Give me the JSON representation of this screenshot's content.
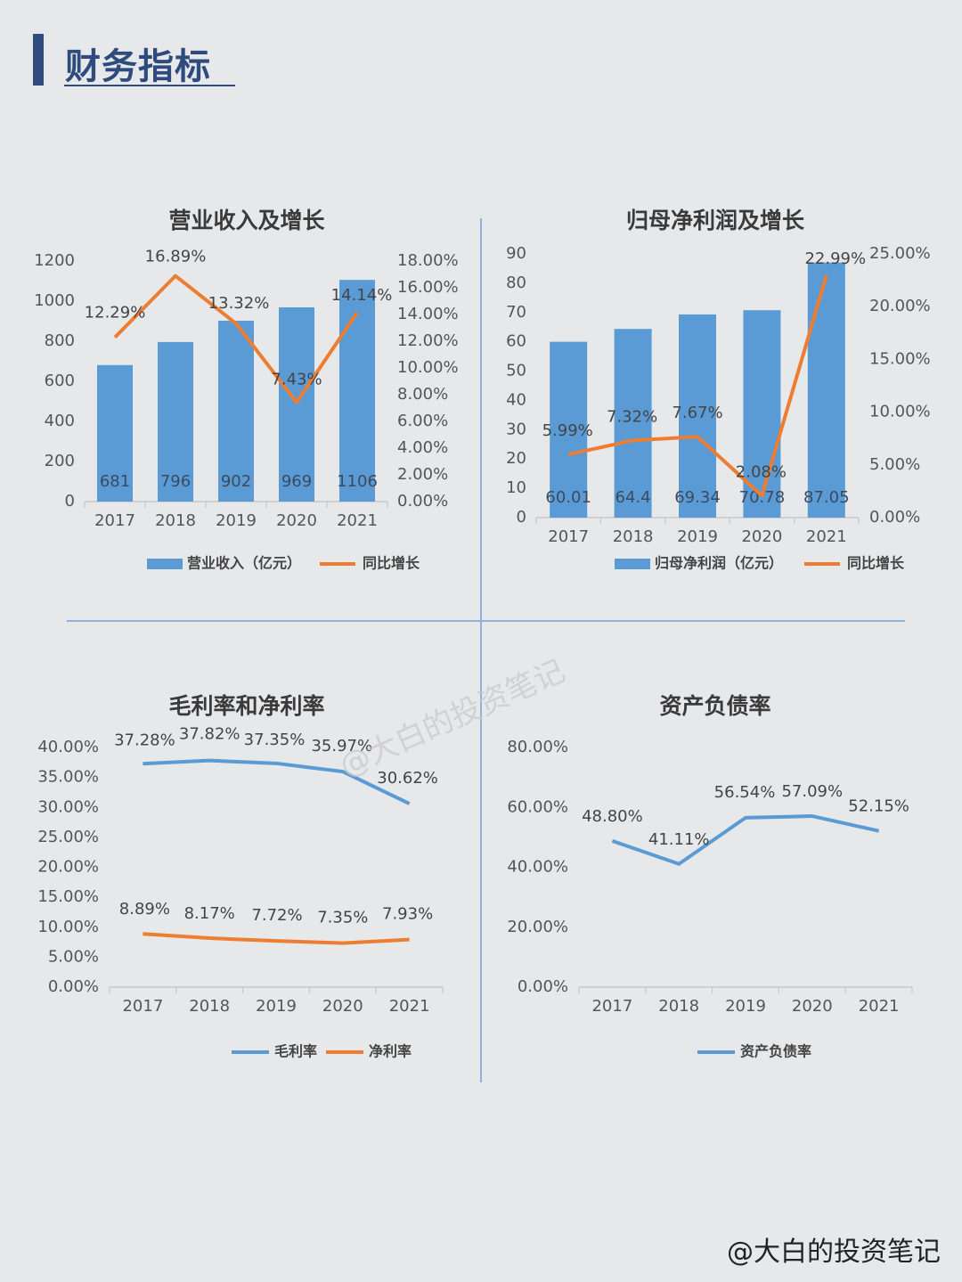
{
  "header": {
    "title": "财务指标"
  },
  "watermark": "@大白的投资笔记",
  "footer": {
    "credit": "@大白的投资笔记"
  },
  "colors": {
    "bar": "#5b9bd5",
    "orange": "#ed7d31",
    "blue_line": "#5b9bd5",
    "header": "#2f4a7c"
  },
  "chart_data": [
    {
      "id": "revenue",
      "type": "bar+line",
      "title": "营业收入及增长",
      "categories": [
        "2017",
        "2018",
        "2019",
        "2020",
        "2021"
      ],
      "bar_series": {
        "name": "营业收入（亿元）",
        "values": [
          681,
          796,
          902,
          969,
          1106
        ],
        "labels": [
          "681",
          "796",
          "902",
          "969",
          "1106"
        ]
      },
      "line_series": {
        "name": "同比增长",
        "values": [
          12.29,
          16.89,
          13.32,
          7.43,
          14.14
        ],
        "labels": [
          "12.29%",
          "16.89%",
          "13.32%",
          "7.43%",
          "14.14%"
        ]
      },
      "left_axis": {
        "ticks": [
          "0",
          "200",
          "400",
          "600",
          "800",
          "1000",
          "1200"
        ],
        "min": 0,
        "max": 1200
      },
      "right_axis": {
        "ticks": [
          "0.00%",
          "2.00%",
          "4.00%",
          "6.00%",
          "8.00%",
          "10.00%",
          "12.00%",
          "14.00%",
          "16.00%",
          "18.00%"
        ],
        "min": 0,
        "max": 18
      },
      "legend": "bottom"
    },
    {
      "id": "profit",
      "type": "bar+line",
      "title": "归母净利润及增长",
      "categories": [
        "2017",
        "2018",
        "2019",
        "2020",
        "2021"
      ],
      "bar_series": {
        "name": "归母净利润（亿元）",
        "values": [
          60.01,
          64.4,
          69.34,
          70.78,
          87.05
        ],
        "labels": [
          "60.01",
          "64.4",
          "69.34",
          "70.78",
          "87.05"
        ]
      },
      "line_series": {
        "name": "同比增长",
        "values": [
          5.99,
          7.32,
          7.67,
          2.08,
          22.99
        ],
        "labels": [
          "5.99%",
          "7.32%",
          "7.67%",
          "2.08%",
          "22.99%"
        ]
      },
      "left_axis": {
        "ticks": [
          "0",
          "10",
          "20",
          "30",
          "40",
          "50",
          "60",
          "70",
          "80",
          "90"
        ],
        "min": 0,
        "max": 90
      },
      "right_axis": {
        "ticks": [
          "0.00%",
          "5.00%",
          "10.00%",
          "15.00%",
          "20.00%",
          "25.00%"
        ],
        "min": 0,
        "max": 25
      },
      "legend": "bottom"
    },
    {
      "id": "margins",
      "type": "line",
      "title": "毛利率和净利率",
      "categories": [
        "2017",
        "2018",
        "2019",
        "2020",
        "2021"
      ],
      "series": [
        {
          "name": "毛利率",
          "values": [
            37.28,
            37.82,
            37.35,
            35.97,
            30.62
          ],
          "labels": [
            "37.28%",
            "37.82%",
            "37.35%",
            "35.97%",
            "30.62%"
          ]
        },
        {
          "name": "净利率",
          "values": [
            8.89,
            8.17,
            7.72,
            7.35,
            7.93
          ],
          "labels": [
            "8.89%",
            "8.17%",
            "7.72%",
            "7.35%",
            "7.93%"
          ]
        }
      ],
      "y_axis": {
        "ticks": [
          "0.00%",
          "5.00%",
          "10.00%",
          "15.00%",
          "20.00%",
          "25.00%",
          "30.00%",
          "35.00%",
          "40.00%"
        ],
        "min": 0,
        "max": 40
      },
      "legend": "bottom"
    },
    {
      "id": "debt",
      "type": "line",
      "title": "资产负债率",
      "categories": [
        "2017",
        "2018",
        "2019",
        "2020",
        "2021"
      ],
      "series": [
        {
          "name": "资产负债率",
          "values": [
            48.8,
            41.11,
            56.54,
            57.09,
            52.15
          ],
          "labels": [
            "48.80%",
            "41.11%",
            "56.54%",
            "57.09%",
            "52.15%"
          ]
        }
      ],
      "y_axis": {
        "ticks": [
          "0.00%",
          "20.00%",
          "40.00%",
          "60.00%",
          "80.00%"
        ],
        "min": 0,
        "max": 80
      },
      "legend": "bottom"
    }
  ]
}
